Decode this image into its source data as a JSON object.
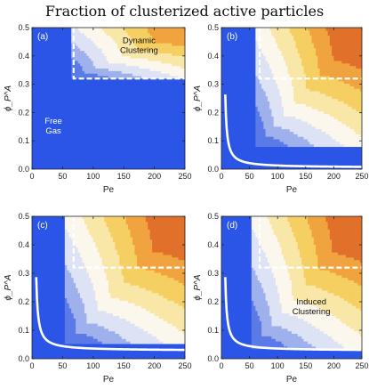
{
  "title": "Fraction of clusterized active particles",
  "colors": {
    "background_blue": "#2b55e6",
    "boundary_line": "#ffffff",
    "colormap": [
      "#2b55e6",
      "#5a7ae8",
      "#9fb1ec",
      "#dde3f4",
      "#fbf7ec",
      "#f8e7a6",
      "#f5cf62",
      "#f0a33e",
      "#e1702a"
    ]
  },
  "chart_data": [
    {
      "type": "heatmap",
      "panel_label": "(a)",
      "xlabel": "Pe",
      "ylabel": "ϕ_P^A",
      "xlim": [
        0,
        250
      ],
      "ylim": [
        0,
        0.5
      ],
      "xticks": [
        "0",
        "50",
        "100",
        "150",
        "200",
        "250"
      ],
      "yticks": [
        "0.0",
        "0.1",
        "0.2",
        "0.3",
        "0.4",
        "0.5"
      ],
      "field": {
        "pe0": 65,
        "phi0": 0.32,
        "boundary_pe": null,
        "boundary_phi": null,
        "diag_min": 0.55,
        "max_level": 7
      },
      "dashed_region": {
        "pe": 68,
        "phi_from": 0.32,
        "phi_to": 0.5
      },
      "annotations": [
        {
          "lines": [
            "Dynamic",
            "Clustering"
          ],
          "pe": 175,
          "phi": 0.445,
          "color": "#111111"
        },
        {
          "lines": [
            "Free",
            "Gas"
          ],
          "pe": 35,
          "phi": 0.16,
          "color": "#ffffff"
        }
      ]
    },
    {
      "type": "heatmap",
      "panel_label": "(b)",
      "xlabel": "Pe",
      "ylabel": "ϕ_P^A",
      "xlim": [
        0,
        250
      ],
      "ylim": [
        0,
        0.5
      ],
      "xticks": [
        "0",
        "50",
        "100",
        "150",
        "200",
        "250"
      ],
      "yticks": [
        "0.0",
        "0.1",
        "0.2",
        "0.3",
        "0.4",
        "0.5"
      ],
      "field": {
        "pe0": 60,
        "phi0": 0.08,
        "boundary_pe": 4,
        "boundary_phi": 0.005,
        "diag_min": 0.62,
        "max_level": 8
      },
      "dashed_region": {
        "pe": 68,
        "phi_from": 0.32,
        "phi_to": 0.5
      },
      "annotations": []
    },
    {
      "type": "heatmap",
      "panel_label": "(c)",
      "xlabel": "Pe",
      "ylabel": "ϕ_P^A",
      "xlim": [
        0,
        250
      ],
      "ylim": [
        0,
        0.5
      ],
      "xticks": [
        "0",
        "50",
        "100",
        "150",
        "200",
        "250"
      ],
      "yticks": [
        "0.0",
        "0.1",
        "0.2",
        "0.3",
        "0.4",
        "0.5"
      ],
      "field": {
        "pe0": 55,
        "phi0": 0.05,
        "boundary_pe": 4,
        "boundary_phi": 0.028,
        "diag_min": 0.6,
        "max_level": 8
      },
      "dashed_region": {
        "pe": 68,
        "phi_from": 0.32,
        "phi_to": 0.5
      },
      "annotations": []
    },
    {
      "type": "heatmap",
      "panel_label": "(d)",
      "xlabel": "Pe",
      "ylabel": "ϕ_P^A",
      "xlim": [
        0,
        250
      ],
      "ylim": [
        0,
        0.5
      ],
      "xticks": [
        "0",
        "50",
        "100",
        "150",
        "200",
        "250"
      ],
      "yticks": [
        "0.0",
        "0.1",
        "0.2",
        "0.3",
        "0.4",
        "0.5"
      ],
      "field": {
        "pe0": 55,
        "phi0": 0.04,
        "boundary_pe": 4,
        "boundary_phi": 0.028,
        "diag_min": 0.55,
        "max_level": 8
      },
      "dashed_region": {
        "pe": 68,
        "phi_from": 0.32,
        "phi_to": 0.5
      },
      "annotations": [
        {
          "lines": [
            "Induced",
            "Clustering"
          ],
          "pe": 160,
          "phi": 0.19,
          "color": "#111111"
        }
      ]
    }
  ]
}
